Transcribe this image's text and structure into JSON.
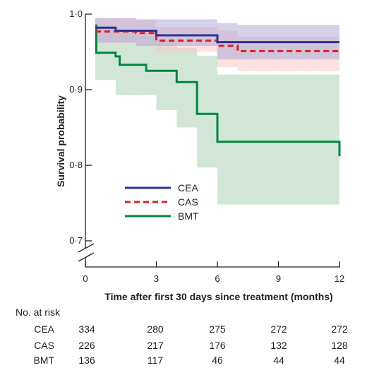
{
  "chart_data": {
    "type": "line",
    "subtype": "kaplan-meier",
    "xlabel": "Time after first 30 days since treatment (months)",
    "ylabel": "Survival probability",
    "xlim": [
      0,
      12
    ],
    "ylim": [
      0.7,
      1.0
    ],
    "y_axis_break": true,
    "x_ticks": [
      0,
      3,
      6,
      9,
      12
    ],
    "x_tick_labels": [
      "0",
      "3",
      "6",
      "9",
      "12"
    ],
    "y_ticks": [
      0.7,
      0.8,
      0.9,
      1.0
    ],
    "y_tick_labels": [
      "0·7",
      "0·8",
      "0·9",
      "1·0"
    ],
    "legend_position": "center",
    "grid": false,
    "series": [
      {
        "name": "CEA",
        "color": "#2e3192",
        "band_color": "#b3abd6",
        "line_style": "solid",
        "x": [
          0,
          1,
          1,
          3,
          3,
          6,
          6,
          12
        ],
        "y": [
          0.982,
          0.982,
          0.978,
          0.978,
          0.972,
          0.972,
          0.963,
          0.963
        ],
        "ci_x": [
          0,
          2,
          2,
          6,
          6,
          7,
          7,
          12
        ],
        "ci_lower": [
          0.962,
          0.962,
          0.958,
          0.958,
          0.94,
          0.94,
          0.94,
          0.94
        ],
        "ci_upper": [
          0.995,
          0.995,
          0.993,
          0.993,
          0.988,
          0.988,
          0.986,
          0.986
        ]
      },
      {
        "name": "CAS",
        "color": "#d2232a",
        "band_color": "#f7c8c6",
        "line_style": "dashed",
        "x": [
          0,
          2,
          2,
          3,
          3,
          6,
          6,
          7,
          7,
          12
        ],
        "y": [
          0.977,
          0.977,
          0.975,
          0.975,
          0.965,
          0.965,
          0.958,
          0.958,
          0.951,
          0.951
        ],
        "ci_x": [
          0,
          2,
          2,
          3,
          3,
          6,
          6,
          7,
          7,
          12
        ],
        "ci_lower": [
          0.962,
          0.962,
          0.96,
          0.96,
          0.95,
          0.95,
          0.93,
          0.93,
          0.925,
          0.925
        ],
        "ci_upper": [
          0.995,
          0.995,
          0.993,
          0.993,
          0.983,
          0.983,
          0.978,
          0.978,
          0.97,
          0.97
        ]
      },
      {
        "name": "BMT",
        "color": "#00853e",
        "band_color": "#cde3d3",
        "line_style": "solid",
        "x": [
          0,
          0.05,
          0.05,
          1,
          1,
          1.2,
          1.2,
          2.5,
          2.5,
          4,
          4,
          5,
          5,
          6,
          6,
          12,
          12
        ],
        "y": [
          0.985,
          0.985,
          0.949,
          0.949,
          0.944,
          0.944,
          0.933,
          0.933,
          0.925,
          0.925,
          0.91,
          0.91,
          0.868,
          0.868,
          0.831,
          0.831,
          0.812
        ],
        "ci_x": [
          0,
          1,
          1,
          2,
          2,
          3,
          3,
          4,
          4,
          5,
          5,
          6,
          6,
          12
        ],
        "ci_lower": [
          0.913,
          0.913,
          0.893,
          0.893,
          0.893,
          0.893,
          0.873,
          0.873,
          0.85,
          0.85,
          0.797,
          0.797,
          0.748,
          0.748
        ],
        "ci_upper": [
          0.985,
          0.985,
          0.98,
          0.98,
          0.97,
          0.97,
          0.965,
          0.965,
          0.955,
          0.955,
          0.945,
          0.945,
          0.92,
          0.92
        ]
      }
    ],
    "risk_table": {
      "title": "No. at risk",
      "times": [
        0,
        3,
        6,
        9,
        12
      ],
      "rows": [
        {
          "label": "CEA",
          "values": [
            "334",
            "280",
            "275",
            "272",
            "272"
          ]
        },
        {
          "label": "CAS",
          "values": [
            "226",
            "217",
            "176",
            "132",
            "128"
          ]
        },
        {
          "label": "BMT",
          "values": [
            "136",
            "117",
            "46",
            "44",
            "44"
          ]
        }
      ]
    }
  }
}
